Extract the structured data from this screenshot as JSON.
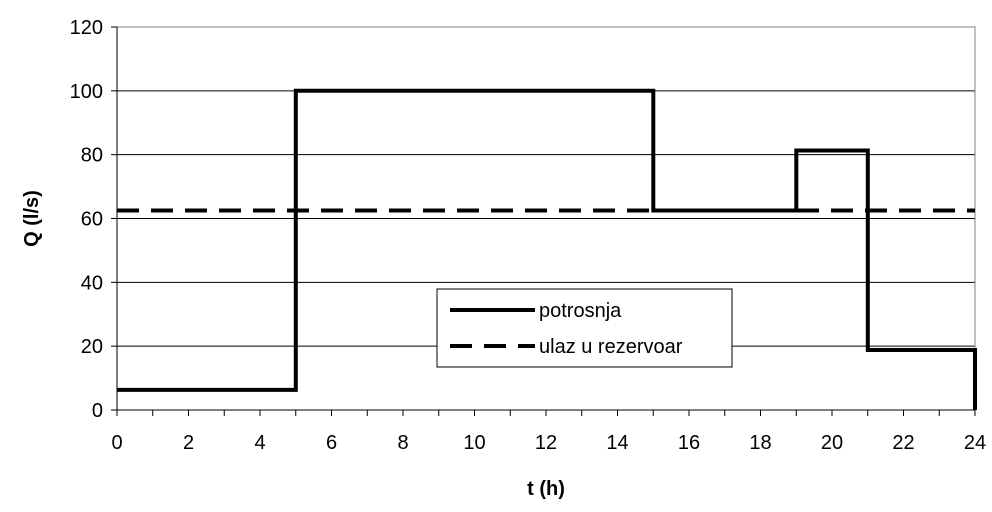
{
  "chart_data": {
    "type": "line",
    "xlabel": "t (h)",
    "ylabel": "Q (l/s)",
    "xlim": [
      0,
      24
    ],
    "ylim": [
      0,
      120
    ],
    "x_ticks": [
      0,
      2,
      4,
      6,
      8,
      10,
      12,
      14,
      16,
      18,
      20,
      22,
      24
    ],
    "y_ticks": [
      0,
      20,
      40,
      60,
      80,
      100,
      120
    ],
    "grid": "horizontal",
    "legend_position": "center",
    "series": [
      {
        "name": "potrosnja",
        "style": "solid",
        "color": "#000000",
        "x": [
          0,
          5,
          5,
          15,
          15,
          19,
          19,
          21,
          21,
          24,
          24
        ],
        "y": [
          6.3,
          6.3,
          100,
          100,
          62.5,
          62.5,
          81.3,
          81.3,
          18.8,
          18.8,
          0
        ]
      },
      {
        "name": "ulaz u rezervoar",
        "style": "dashed",
        "color": "#000000",
        "x": [
          0,
          24
        ],
        "y": [
          62.5,
          62.5
        ]
      }
    ]
  }
}
